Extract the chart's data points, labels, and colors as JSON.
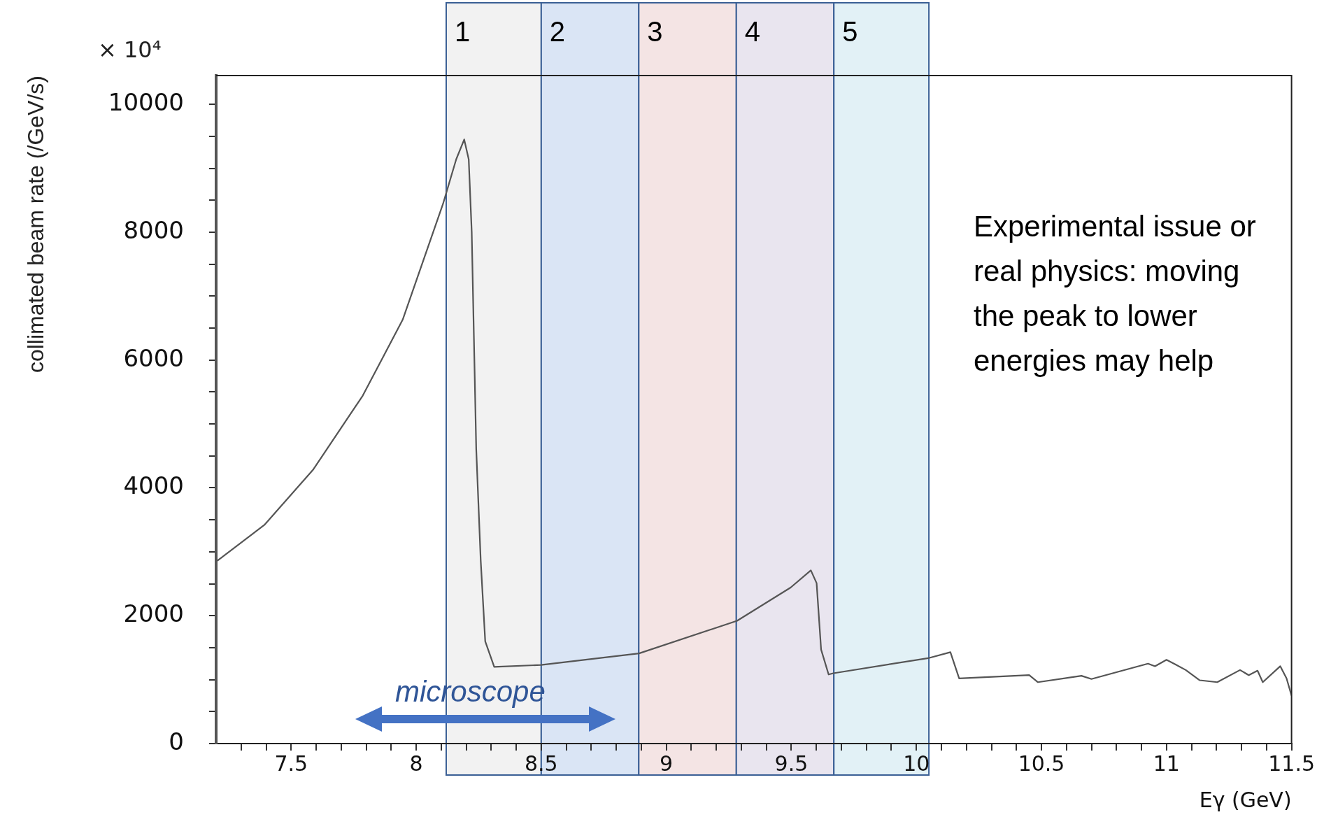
{
  "chart_data": {
    "type": "line",
    "xlabel": "Eγ (GeV)",
    "ylabel": "collimated beam rate (/GeV/s)",
    "x": [
      7.205,
      7.393,
      7.589,
      7.786,
      7.946,
      8.107,
      8.16,
      8.192,
      8.21,
      8.222,
      8.24,
      8.258,
      8.276,
      8.312,
      8.499,
      8.891,
      9.283,
      9.497,
      9.578,
      9.601,
      9.619,
      9.649,
      9.668,
      10.052,
      10.136,
      10.171,
      10.451,
      10.486,
      10.66,
      10.7,
      10.926,
      10.954,
      11.0,
      11.035,
      11.077,
      11.133,
      11.203,
      11.294,
      11.329,
      11.364,
      11.385,
      11.455,
      11.48,
      11.5
    ],
    "series": [
      {
        "color": "#555555",
        "values": [
          2860,
          3420,
          4290,
          5440,
          6630,
          8440,
          9140,
          9450,
          9140,
          8000,
          4610,
          2860,
          1600,
          1200,
          1230,
          1410,
          1920,
          2440,
          2710,
          2510,
          1470,
          1080,
          1100,
          1340,
          1430,
          1020,
          1070,
          960,
          1060,
          1010,
          1250,
          1210,
          1310,
          1240,
          1150,
          990,
          960,
          1150,
          1070,
          1140,
          960,
          1210,
          1020,
          750
        ]
      }
    ],
    "xlim": [
      7.2,
      11.5
    ],
    "xticks": [
      {
        "value": 7.3,
        "label": null
      },
      {
        "value": 7.4,
        "label": null
      },
      7.5,
      {
        "value": 7.6,
        "label": null
      },
      {
        "value": 7.7,
        "label": null
      },
      {
        "value": 7.8,
        "label": null
      },
      {
        "value": 7.9,
        "label": null
      },
      8,
      {
        "value": 8.1,
        "label": null
      },
      {
        "value": 8.2,
        "label": null
      },
      {
        "value": 8.3,
        "label": null
      },
      {
        "value": 8.4,
        "label": null
      },
      8.5,
      {
        "value": 8.6,
        "label": null
      },
      {
        "value": 8.7,
        "label": null
      },
      {
        "value": 8.8,
        "label": null
      },
      {
        "value": 8.9,
        "label": null
      },
      9,
      {
        "value": 9.1,
        "label": null
      },
      {
        "value": 9.2,
        "label": null
      },
      {
        "value": 9.3,
        "label": null
      },
      {
        "value": 9.4,
        "label": null
      },
      9.5,
      {
        "value": 9.6,
        "label": null
      },
      {
        "value": 9.7,
        "label": null
      },
      {
        "value": 9.8,
        "label": null
      },
      {
        "value": 9.9,
        "label": null
      },
      10,
      {
        "value": 10.1,
        "label": null
      },
      {
        "value": 10.2,
        "label": null
      },
      {
        "value": 10.3,
        "label": null
      },
      {
        "value": 10.4,
        "label": null
      },
      10.5,
      {
        "value": 10.6,
        "label": null
      },
      {
        "value": 10.7,
        "label": null
      },
      {
        "value": 10.8,
        "label": null
      },
      {
        "value": 10.9,
        "label": null
      },
      11,
      {
        "value": 11.1,
        "label": null
      },
      {
        "value": 11.2,
        "label": null
      },
      {
        "value": 11.3,
        "label": null
      },
      {
        "value": 11.4,
        "label": null
      },
      11.5
    ],
    "ylim": [
      0,
      10450
    ],
    "yticks": [
      0,
      {
        "value": 500,
        "label": null
      },
      {
        "value": 1000,
        "label": null
      },
      {
        "value": 1500,
        "label": null
      },
      2000,
      {
        "value": 2500,
        "label": null
      },
      {
        "value": 3000,
        "label": null
      },
      {
        "value": 3500,
        "label": null
      },
      4000,
      {
        "value": 4500,
        "label": null
      },
      {
        "value": 5000,
        "label": null
      },
      {
        "value": 5500,
        "label": null
      },
      6000,
      {
        "value": 6500,
        "label": null
      },
      {
        "value": 7000,
        "label": null
      },
      {
        "value": 7500,
        "label": null
      },
      8000,
      {
        "value": 8500,
        "label": null
      },
      {
        "value": 9000,
        "label": null
      },
      {
        "value": 9500,
        "label": null
      },
      10000
    ],
    "bands": [
      {
        "axis": "x",
        "from": 8.12,
        "to": 8.5,
        "label": "1",
        "color": "#f2f2f2"
      },
      {
        "axis": "x",
        "from": 8.5,
        "to": 8.89,
        "label": "2",
        "color": "#dae5f5"
      },
      {
        "axis": "x",
        "from": 8.89,
        "to": 9.28,
        "label": "3",
        "color": "#f4e4e4"
      },
      {
        "axis": "x",
        "from": 9.28,
        "to": 9.67,
        "label": "4",
        "color": "#e9e5ef"
      },
      {
        "axis": "x",
        "from": 9.67,
        "to": 10.05,
        "label": "5",
        "color": "#e2f1f6"
      }
    ],
    "annotations": [
      "× 10⁴",
      "microscope",
      "Experimental issue or real physics: moving the peak to lower energies may help"
    ],
    "grid": false,
    "legend": false,
    "marker": "none",
    "line_style": "solid"
  }
}
